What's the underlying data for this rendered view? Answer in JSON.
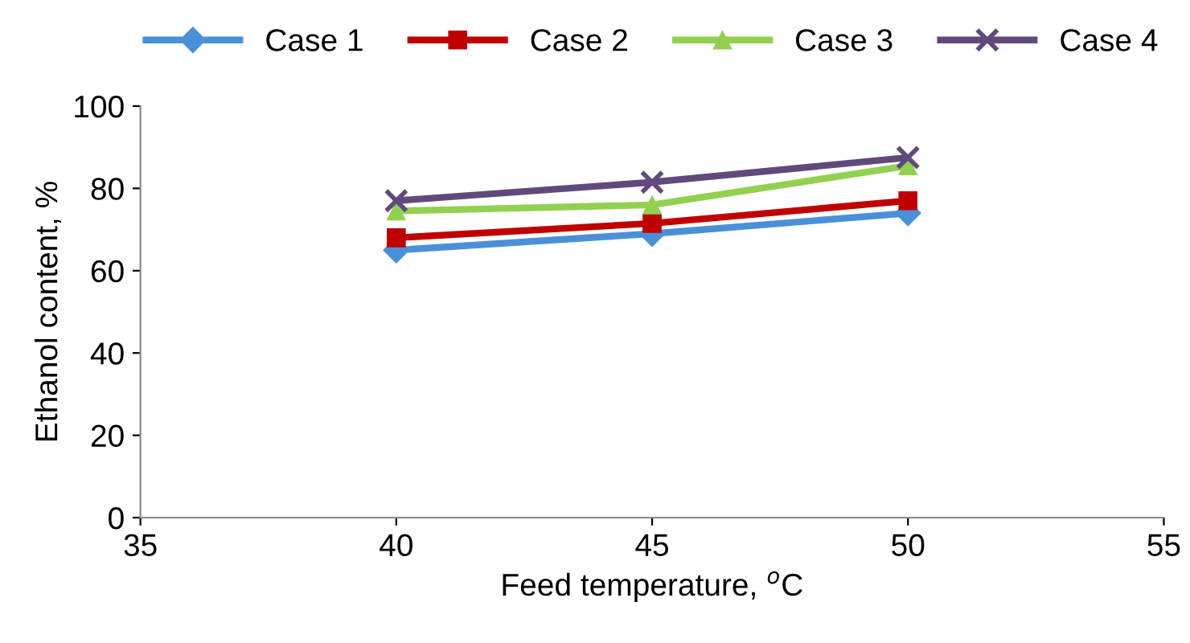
{
  "chart_data": {
    "type": "line",
    "xlabel": "Feed temperature, $^{o}$C",
    "ylabel": "Ethanol content, %",
    "x": [
      40,
      45,
      50
    ],
    "series": [
      {
        "name": "Case 1",
        "color": "#4a90d9",
        "marker": "diamond",
        "values": [
          65,
          69,
          74
        ]
      },
      {
        "name": "Case 2",
        "color": "#c00000",
        "marker": "square",
        "values": [
          68,
          71.5,
          77
        ]
      },
      {
        "name": "Case 3",
        "color": "#92d050",
        "marker": "triangle",
        "values": [
          74.5,
          76,
          85.5
        ]
      },
      {
        "name": "Case 4",
        "color": "#604a7b",
        "marker": "cross",
        "values": [
          77,
          81.5,
          87.5
        ]
      }
    ],
    "xlim": [
      35,
      55
    ],
    "xticks": [
      35,
      40,
      45,
      50,
      55
    ],
    "ylim": [
      0,
      100
    ],
    "yticks": [
      0,
      20,
      40,
      60,
      80,
      100
    ],
    "grid": false,
    "legend": "top",
    "line_style": "solid"
  }
}
